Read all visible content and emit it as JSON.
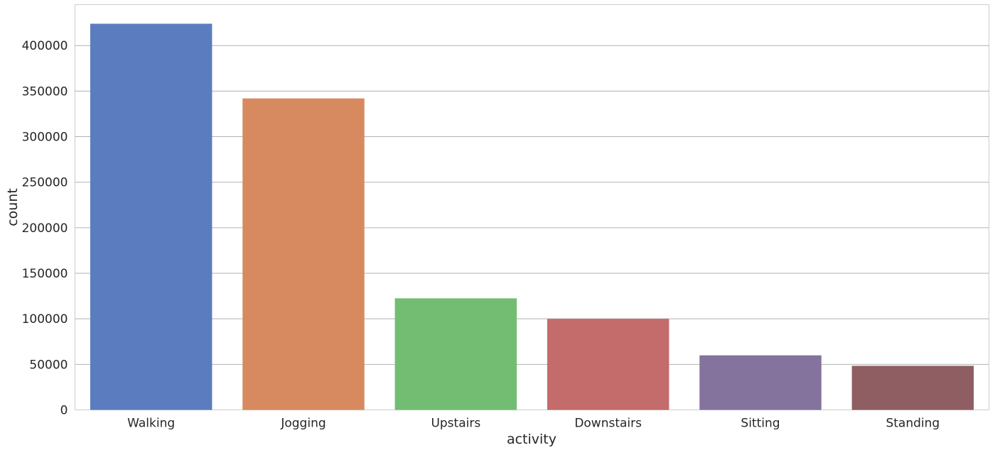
{
  "chart_data": {
    "type": "bar",
    "xlabel": "activity",
    "ylabel": "count",
    "categories": [
      "Walking",
      "Jogging",
      "Upstairs",
      "Downstairs",
      "Sitting",
      "Standing"
    ],
    "values": [
      424000,
      342000,
      122500,
      100000,
      59900,
      48400
    ],
    "colors": [
      "#5b7dbf",
      "#d78a5f",
      "#72bd72",
      "#c46b6b",
      "#84739c",
      "#8f5e62"
    ],
    "ylim": [
      0,
      445000
    ],
    "yticks": [
      0,
      50000,
      100000,
      150000,
      200000,
      250000,
      300000,
      350000,
      400000
    ],
    "grid": true,
    "legend": false
  }
}
